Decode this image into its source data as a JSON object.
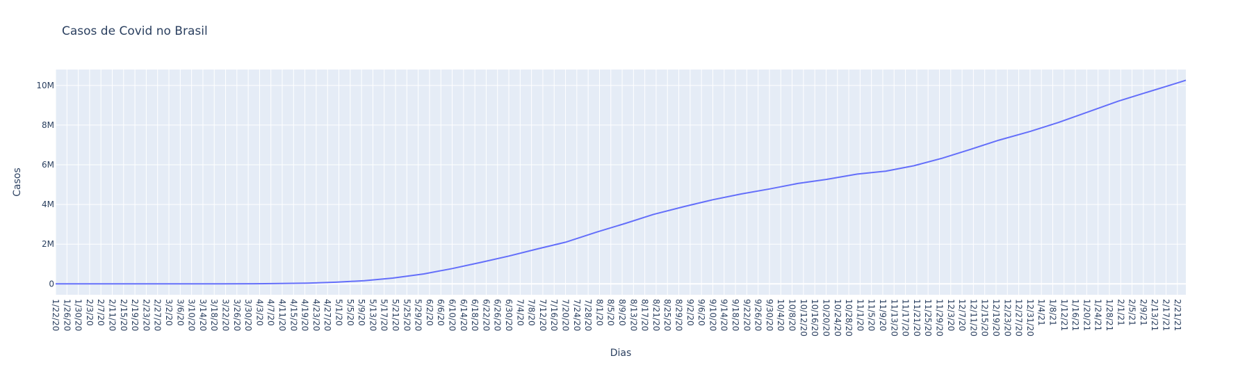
{
  "chart_data": {
    "type": "line",
    "title": "Casos de Covid no Brasil",
    "xlabel": "Dias",
    "ylabel": "Casos",
    "x_start": "2020-01-22",
    "x_end": "2021-02-24",
    "xlim": [
      "2020-01-22",
      "2021-02-24"
    ],
    "ylim": [
      -550000,
      10800000
    ],
    "grid": true,
    "series_color": "#636efa",
    "plot_bg": "#e5ecf6",
    "y_ticks": [
      {
        "value": 0,
        "label": "0"
      },
      {
        "value": 2000000,
        "label": "2M"
      },
      {
        "value": 4000000,
        "label": "4M"
      },
      {
        "value": 6000000,
        "label": "6M"
      },
      {
        "value": 8000000,
        "label": "8M"
      },
      {
        "value": 10000000,
        "label": "10M"
      }
    ],
    "x_tick_labels": [
      "1/22/20",
      "1/26/20",
      "1/30/20",
      "2/3/20",
      "2/7/20",
      "2/11/20",
      "2/15/20",
      "2/19/20",
      "2/23/20",
      "2/27/20",
      "3/2/20",
      "3/6/20",
      "3/10/20",
      "3/14/20",
      "3/18/20",
      "3/22/20",
      "3/26/20",
      "3/30/20",
      "4/3/20",
      "4/7/20",
      "4/11/20",
      "4/15/20",
      "4/19/20",
      "4/23/20",
      "4/27/20",
      "5/1/20",
      "5/5/20",
      "5/9/20",
      "5/13/20",
      "5/17/20",
      "5/21/20",
      "5/25/20",
      "5/29/20",
      "6/2/20",
      "6/6/20",
      "6/10/20",
      "6/14/20",
      "6/18/20",
      "6/22/20",
      "6/26/20",
      "6/30/20",
      "7/4/20",
      "7/8/20",
      "7/12/20",
      "7/16/20",
      "7/20/20",
      "7/24/20",
      "7/28/20",
      "8/1/20",
      "8/5/20",
      "8/9/20",
      "8/13/20",
      "8/17/20",
      "8/21/20",
      "8/25/20",
      "8/29/20",
      "9/2/20",
      "9/6/20",
      "9/10/20",
      "9/14/20",
      "9/18/20",
      "9/22/20",
      "9/26/20",
      "9/30/20",
      "10/4/20",
      "10/8/20",
      "10/12/20",
      "10/16/20",
      "10/20/20",
      "10/24/20",
      "10/28/20",
      "11/1/20",
      "11/5/20",
      "11/9/20",
      "11/13/20",
      "11/17/20",
      "11/21/20",
      "11/25/20",
      "11/29/20",
      "12/3/20",
      "12/7/20",
      "12/11/20",
      "12/15/20",
      "12/19/20",
      "12/23/20",
      "12/27/20",
      "12/31/20",
      "1/4/21",
      "1/8/21",
      "1/12/21",
      "1/16/21",
      "1/20/21",
      "1/24/21",
      "1/28/21",
      "2/1/21",
      "2/5/21",
      "2/9/21",
      "2/13/21",
      "2/17/21",
      "2/21/21"
    ],
    "x": [
      "2020-01-22",
      "2020-02-26",
      "2020-03-10",
      "2020-03-20",
      "2020-04-01",
      "2020-04-10",
      "2020-04-20",
      "2020-04-30",
      "2020-05-10",
      "2020-05-20",
      "2020-05-31",
      "2020-06-10",
      "2020-06-20",
      "2020-06-30",
      "2020-07-10",
      "2020-07-20",
      "2020-07-31",
      "2020-08-10",
      "2020-08-20",
      "2020-08-31",
      "2020-09-10",
      "2020-09-20",
      "2020-09-30",
      "2020-10-10",
      "2020-10-20",
      "2020-10-31",
      "2020-11-10",
      "2020-11-20",
      "2020-11-30",
      "2020-12-10",
      "2020-12-20",
      "2020-12-31",
      "2021-01-10",
      "2021-01-20",
      "2021-01-31",
      "2021-02-10",
      "2021-02-20",
      "2021-02-24"
    ],
    "y": [
      0,
      1,
      34,
      904,
      6836,
      18000,
      40000,
      85000,
      160000,
      290000,
      500000,
      770000,
      1080000,
      1400000,
      1760000,
      2100000,
      2610000,
      3040000,
      3500000,
      3900000,
      4240000,
      4530000,
      4780000,
      5060000,
      5260000,
      5530000,
      5680000,
      5950000,
      6330000,
      6780000,
      7240000,
      7680000,
      8130000,
      8640000,
      9200000,
      9640000,
      10080000,
      10260000
    ]
  }
}
